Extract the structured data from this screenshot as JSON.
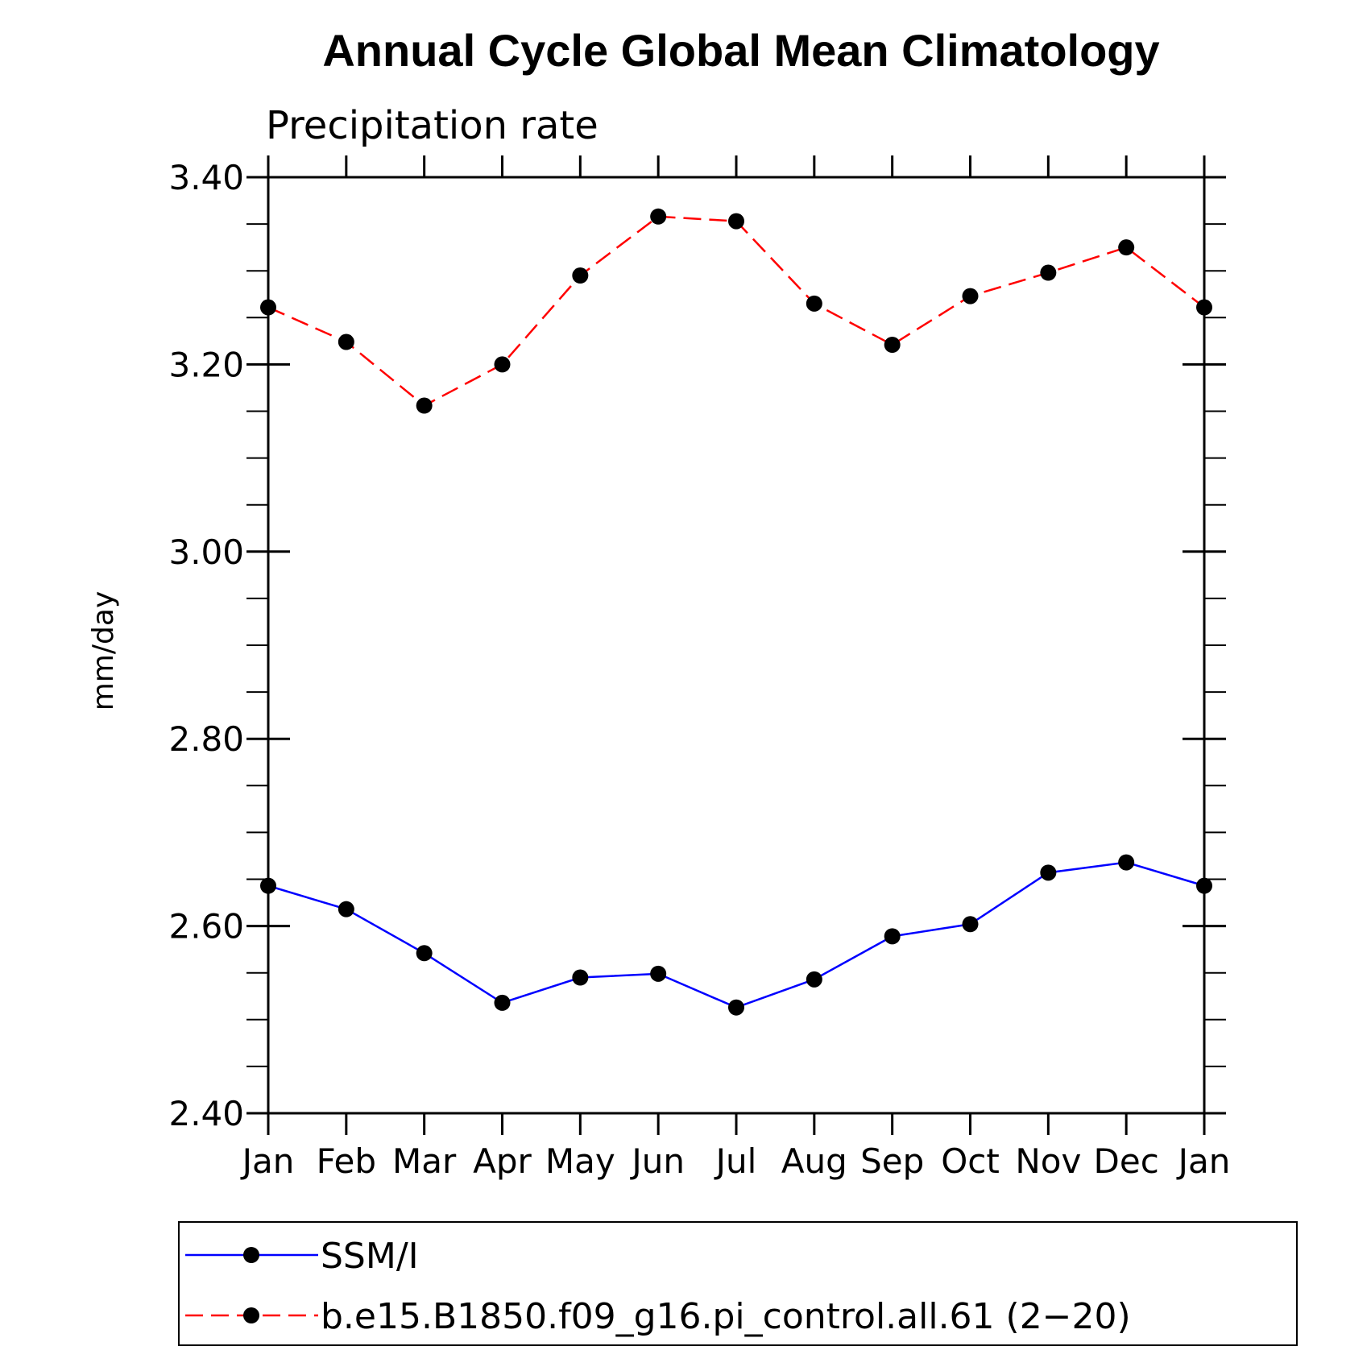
{
  "chart_data": {
    "type": "line",
    "title": "Annual Cycle Global Mean Climatology",
    "subtitle": "Precipitation rate",
    "xlabel": "",
    "ylabel": "mm/day",
    "categories": [
      "Jan",
      "Feb",
      "Mar",
      "Apr",
      "May",
      "Jun",
      "Jul",
      "Aug",
      "Sep",
      "Oct",
      "Nov",
      "Dec",
      "Jan"
    ],
    "ylim": [
      2.4,
      3.4
    ],
    "yticks": [
      2.4,
      2.6,
      2.8,
      3.0,
      3.2,
      3.4
    ],
    "ytick_labels": [
      "2.40",
      "2.60",
      "2.80",
      "3.00",
      "3.20",
      "3.40"
    ],
    "y_minor_step": 0.05,
    "grid": false,
    "legend_position": "bottom",
    "series": [
      {
        "name": "SSM/I",
        "color": "#0000ff",
        "dash": "solid",
        "marker": "filled-circle",
        "values": [
          2.643,
          2.618,
          2.571,
          2.518,
          2.545,
          2.549,
          2.513,
          2.543,
          2.589,
          2.602,
          2.657,
          2.668,
          2.643
        ]
      },
      {
        "name": "b.e15.B1850.f09_g16.pi_control.all.61 (2−20)",
        "color": "#ff0000",
        "dash": "dashed",
        "marker": "filled-circle",
        "values": [
          3.261,
          3.224,
          3.156,
          3.2,
          3.295,
          3.358,
          3.353,
          3.265,
          3.221,
          3.273,
          3.298,
          3.325,
          3.261
        ]
      }
    ]
  }
}
